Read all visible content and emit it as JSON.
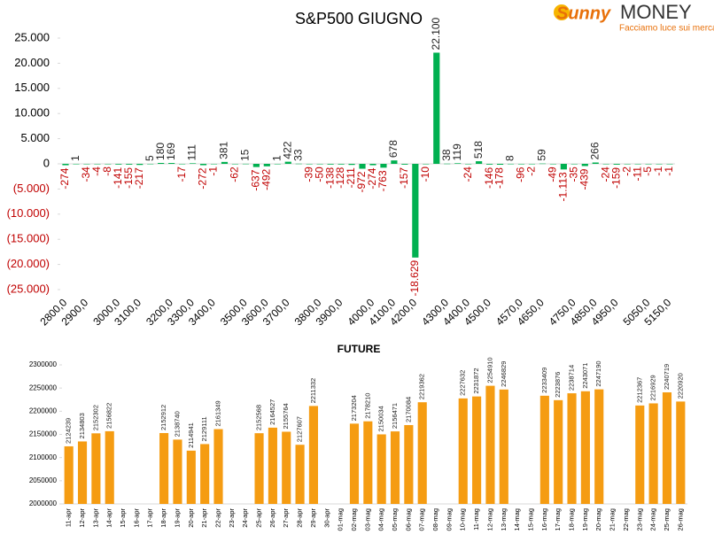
{
  "logo": {
    "brand": "Sunny",
    "name": "MONEY",
    "tagline": "Facciamo luce sui mercati"
  },
  "chart_data": [
    {
      "type": "bar",
      "title": "S&P500 GIUGNO",
      "categories": [
        "2800,0",
        null,
        "2900,0",
        null,
        null,
        "3000,0",
        null,
        "3100,0",
        null,
        null,
        "3200,0",
        null,
        "3300,0",
        null,
        "3400,0",
        null,
        null,
        "3500,0",
        null,
        "3600,0",
        null,
        "3700,0",
        null,
        null,
        "3800,0",
        null,
        "3900,0",
        null,
        null,
        "4000,0",
        null,
        "4100,0",
        null,
        "4200,0",
        null,
        null,
        "4300,0",
        null,
        "4400,0",
        null,
        "4500,0",
        null,
        null,
        "4570,0",
        null,
        "4650,0",
        null,
        null,
        "4750,0",
        null,
        "4850,0",
        null,
        "4950,0",
        null,
        null,
        "5050,0",
        null,
        "5150,0"
      ],
      "values": [
        -274,
        1,
        -34,
        -4,
        -8,
        -141,
        -155,
        -217,
        5,
        180,
        169,
        -17,
        111,
        -272,
        -1,
        381,
        -62,
        15,
        -637,
        -492,
        1,
        422,
        33,
        -39,
        -50,
        -138,
        -128,
        -211,
        -972,
        -274,
        -763,
        678,
        -157,
        -18629,
        -10,
        22100,
        38,
        119,
        -24,
        518,
        -146,
        -178,
        8,
        -96,
        -2,
        59,
        -49,
        -1113,
        -35,
        -439,
        266,
        -24,
        -159,
        -2,
        -11,
        -5,
        -1,
        -1
      ],
      "value_labels": [
        "-274",
        "1",
        "-34",
        "-4",
        "-8",
        "-141",
        "-155",
        "-217",
        "5",
        "180",
        "169",
        "-17",
        "111",
        "-272",
        "-1",
        "381",
        "-62",
        "15",
        "-637",
        "-492",
        "1",
        "422",
        "33",
        "-39",
        "-50",
        "-138",
        "-128",
        "-211",
        "-972",
        "-274",
        "-763",
        "678",
        "-157",
        "-18.629",
        "-10",
        "22.100",
        "38",
        "119",
        "-24",
        "518",
        "-146",
        "-178",
        "8",
        "-96",
        "-2",
        "59",
        "-49",
        "-1.113",
        "-35",
        "-439",
        "266",
        "-24",
        "-159",
        "-2",
        "-11",
        "-5",
        "-1",
        "-1"
      ],
      "color": "#00b050",
      "negative_label_color": "#c00000",
      "ylim": [
        -25000,
        25000
      ],
      "yticks": [
        {
          "value": 25000,
          "label": "25.000"
        },
        {
          "value": 20000,
          "label": "20.000"
        },
        {
          "value": 15000,
          "label": "15.000"
        },
        {
          "value": 10000,
          "label": "10.000"
        },
        {
          "value": 5000,
          "label": "5.000"
        },
        0,
        {
          "value": -5000,
          "label": "(5.000)"
        },
        {
          "value": -10000,
          "label": "(10.000)"
        },
        {
          "value": -15000,
          "label": "(15.000)"
        },
        {
          "value": -20000,
          "label": "(20.000)"
        },
        {
          "value": -25000,
          "label": "(25.000)"
        }
      ]
    },
    {
      "type": "bar",
      "title": "FUTURE",
      "categories": [
        "11-apr",
        "12-apr",
        "13-apr",
        "14-apr",
        "15-apr",
        "16-apr",
        "17-apr",
        "18-apr",
        "19-apr",
        "20-apr",
        "21-apr",
        "22-apr",
        "23-apr",
        "24-apr",
        "25-apr",
        "26-apr",
        "27-apr",
        "28-apr",
        "29-apr",
        "30-apr",
        "01-mag",
        "02-mag",
        "03-mag",
        "04-mag",
        "05-mag",
        "06-mag",
        "07-mag",
        "08-mag",
        "09-mag",
        "10-mag",
        "11-mag",
        "12-mag",
        "13-mag",
        "14-mag",
        "15-mag",
        "16-mag",
        "17-mag",
        "18-mag",
        "19-mag",
        "20-mag",
        "21-mag",
        "22-mag",
        "23-mag",
        "24-mag",
        "25-mag",
        "26-mag"
      ],
      "values": [
        2124239,
        2134803,
        2152302,
        2156822,
        null,
        null,
        null,
        2152912,
        2138740,
        2114941,
        2129111,
        2161349,
        null,
        null,
        2152568,
        2164527,
        2155764,
        2127607,
        2211332,
        null,
        null,
        2173204,
        2178210,
        2150034,
        2156471,
        2170084,
        2219362,
        null,
        null,
        2227632,
        2231872,
        2254910,
        2246829,
        null,
        null,
        2233409,
        2223876,
        2238714,
        2243071,
        2247190,
        null,
        null,
        2212367,
        2216929,
        2240719,
        2220920
      ],
      "color": "#f59c12",
      "ylim": [
        2000000,
        2300000
      ],
      "yticks": [
        2000000,
        2050000,
        2100000,
        2150000,
        2200000,
        2250000,
        2300000
      ]
    }
  ]
}
